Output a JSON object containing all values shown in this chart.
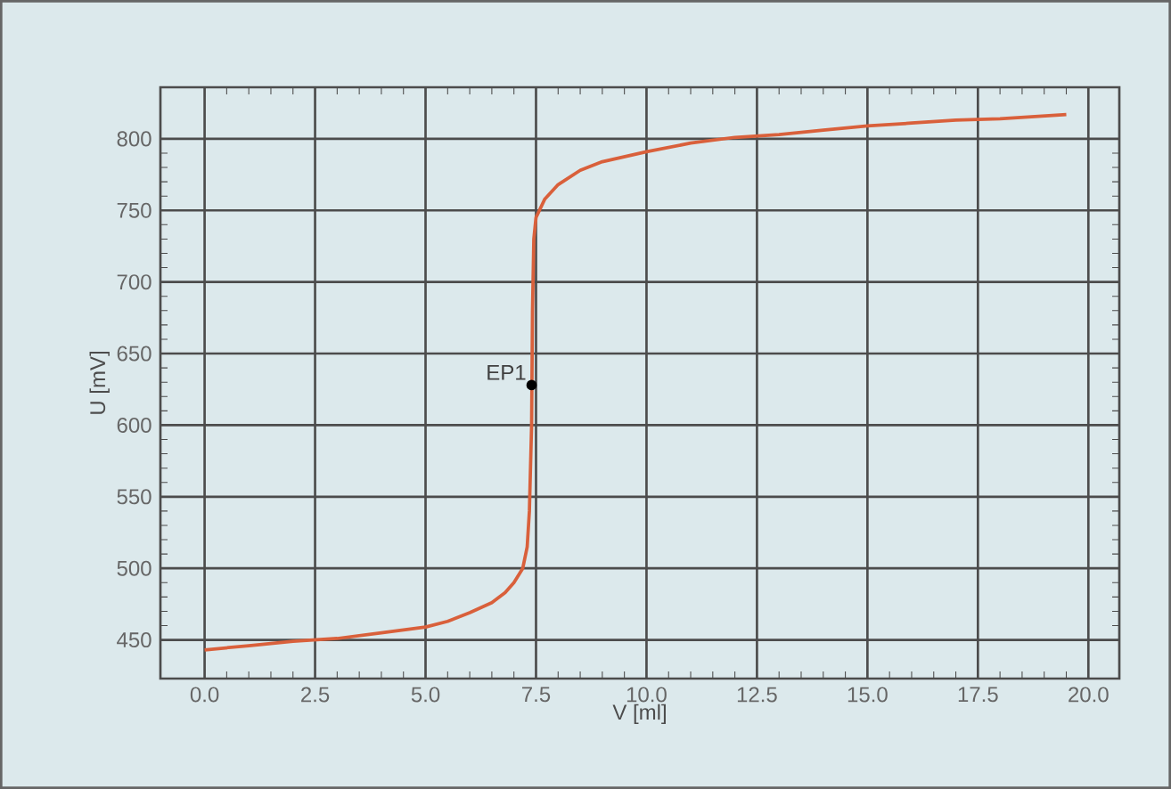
{
  "chart_data": {
    "type": "line",
    "xlabel": "V [ml]",
    "ylabel": "U [mV]",
    "xlim": [
      -1.0,
      20.7
    ],
    "ylim": [
      423,
      836
    ],
    "xticks": [
      {
        "value": 0,
        "label": "0.0"
      },
      2.5,
      {
        "value": 5,
        "label": "5.0"
      },
      7.5,
      {
        "value": 10,
        "label": "10.0"
      },
      12.5,
      {
        "value": 15,
        "label": "15.0"
      },
      17.5,
      {
        "value": 20,
        "label": "20.0"
      }
    ],
    "yticks": [
      450,
      500,
      550,
      600,
      650,
      700,
      750,
      800
    ],
    "grid": true,
    "marker": "none",
    "line_style": "solid",
    "series": [
      {
        "color": "#d9603b",
        "x": [
          0,
          1,
          2,
          2.5,
          3,
          4,
          5,
          5.5,
          6,
          6.5,
          6.8,
          7.0,
          7.2,
          7.3,
          7.35,
          7.4,
          7.42,
          7.45,
          7.5,
          7.7,
          8,
          8.5,
          9,
          10,
          11,
          12,
          13,
          14,
          15,
          16,
          17,
          18,
          19.5
        ],
        "values": [
          443,
          446,
          449,
          450,
          451,
          455,
          459,
          463,
          469,
          476,
          483,
          490,
          500,
          515,
          540,
          600,
          680,
          730,
          745,
          758,
          768,
          778,
          784,
          791,
          797,
          801,
          803,
          806,
          809,
          811,
          813,
          814,
          817
        ]
      },
      {
        "type": "scatter",
        "color": "#000000",
        "marker": "circle",
        "x": [
          7.4
        ],
        "values": [
          628
        ]
      }
    ],
    "annotations": [
      {
        "text": "EP1",
        "x": 7.4,
        "y": 628
      }
    ]
  }
}
